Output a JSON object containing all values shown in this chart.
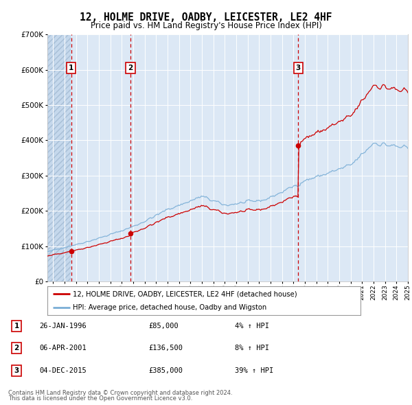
{
  "title": "12, HOLME DRIVE, OADBY, LEICESTER, LE2 4HF",
  "subtitle": "Price paid vs. HM Land Registry's House Price Index (HPI)",
  "xmin": 1994.0,
  "xmax": 2025.5,
  "ymin": 0,
  "ymax": 700000,
  "yticks": [
    0,
    100000,
    200000,
    300000,
    400000,
    500000,
    600000,
    700000
  ],
  "sale_dates": [
    1996.07,
    2001.26,
    2015.92
  ],
  "sale_prices": [
    85000,
    136500,
    385000
  ],
  "sale_labels": [
    "1",
    "2",
    "3"
  ],
  "red_line_color": "#cc0000",
  "blue_line_color": "#7aaed6",
  "dot_color": "#cc0000",
  "vline_color": "#cc0000",
  "background_plot": "#dce8f5",
  "grid_color": "#ffffff",
  "legend_entries": [
    "12, HOLME DRIVE, OADBY, LEICESTER, LE2 4HF (detached house)",
    "HPI: Average price, detached house, Oadby and Wigston"
  ],
  "table_rows": [
    [
      "1",
      "26-JAN-1996",
      "£85,000",
      "4% ↑ HPI"
    ],
    [
      "2",
      "06-APR-2001",
      "£136,500",
      "8% ↑ HPI"
    ],
    [
      "3",
      "04-DEC-2015",
      "£385,000",
      "39% ↑ HPI"
    ]
  ],
  "footnote1": "Contains HM Land Registry data © Crown copyright and database right 2024.",
  "footnote2": "This data is licensed under the Open Government Licence v3.0."
}
